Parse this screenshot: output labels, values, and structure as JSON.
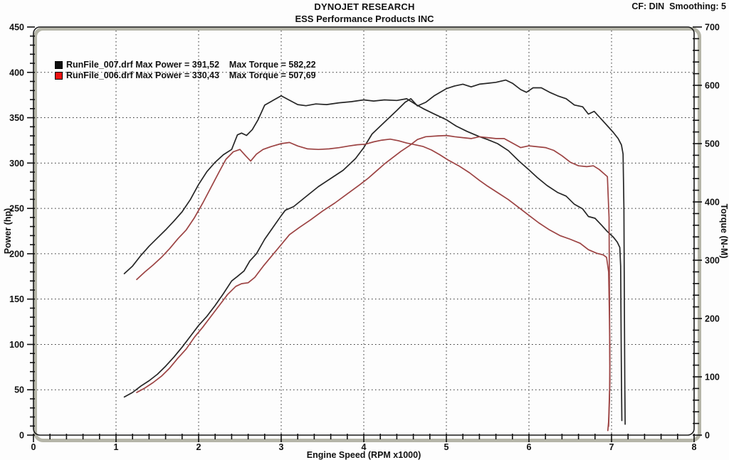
{
  "header": {
    "title": "DYNOJET RESEARCH",
    "subtitle": "ESS Performance Products INC",
    "corner_status": "CF: DIN  Smoothing: 5"
  },
  "legend": {
    "rows": [
      {
        "swatch_color": "#0d0d0d",
        "label": "RunFile_007.drf Max Power = 391,52    Max Torque = 582,22"
      },
      {
        "swatch_color": "#ee1111",
        "label": "RunFile_006.drf Max Power = 330,43    Max Torque = 507,69"
      }
    ]
  },
  "chart_data": {
    "type": "line",
    "title": "DYNOJET RESEARCH",
    "subtitle": "ESS Performance Products INC",
    "xlabel": "Engine Speed (RPM x1000)",
    "ylabel_left": "Power (hp)",
    "ylabel_right": "Torque (N-M)",
    "xlim": [
      0,
      8
    ],
    "ylim_left": [
      0,
      450
    ],
    "ylim_right": [
      0,
      700
    ],
    "x_major_step": 1,
    "x_minor_step": 0.2,
    "y_left_major_step": 50,
    "y_left_minor_step": 10,
    "y_right_major_step": 100,
    "y_right_minor_step": 20,
    "grid": "dotted black; vertical lines at 1..7 RPMx1000, horizontal lines at 50..400 hp",
    "legend_position": "top-left inside plot",
    "axis_colors": {
      "frame_band": "#b5b5a8",
      "frame_line": "#1c1c1c",
      "grid": "#2a2a2a"
    },
    "max_values": {
      "run_007": {
        "max_power_hp": "391,52",
        "max_torque_nm": "582,22"
      },
      "run_006": {
        "max_power_hp": "330,43",
        "max_torque_nm": "507,69"
      }
    },
    "series": [
      {
        "name": "RunFile_007.drf Power",
        "axis": "left",
        "color": "#262626",
        "points": [
          [
            1.1,
            42
          ],
          [
            1.2,
            47
          ],
          [
            1.3,
            54
          ],
          [
            1.4,
            60
          ],
          [
            1.5,
            67
          ],
          [
            1.6,
            76
          ],
          [
            1.7,
            86
          ],
          [
            1.8,
            97
          ],
          [
            1.9,
            109
          ],
          [
            2.0,
            121
          ],
          [
            2.1,
            131
          ],
          [
            2.2,
            143
          ],
          [
            2.3,
            156
          ],
          [
            2.4,
            170
          ],
          [
            2.47,
            175
          ],
          [
            2.55,
            181
          ],
          [
            2.62,
            192
          ],
          [
            2.7,
            200
          ],
          [
            2.8,
            216
          ],
          [
            2.9,
            229
          ],
          [
            3.0,
            242
          ],
          [
            3.05,
            248
          ],
          [
            3.15,
            252
          ],
          [
            3.3,
            263
          ],
          [
            3.45,
            274
          ],
          [
            3.6,
            283
          ],
          [
            3.75,
            292
          ],
          [
            3.9,
            305
          ],
          [
            4.0,
            317
          ],
          [
            4.1,
            332
          ],
          [
            4.25,
            345
          ],
          [
            4.4,
            358
          ],
          [
            4.5,
            367
          ],
          [
            4.57,
            371
          ],
          [
            4.65,
            363
          ],
          [
            4.75,
            367
          ],
          [
            4.85,
            374
          ],
          [
            5.0,
            382
          ],
          [
            5.1,
            385
          ],
          [
            5.2,
            387
          ],
          [
            5.3,
            384
          ],
          [
            5.4,
            387
          ],
          [
            5.5,
            388
          ],
          [
            5.6,
            389
          ],
          [
            5.72,
            391.5
          ],
          [
            5.8,
            388
          ],
          [
            5.9,
            381
          ],
          [
            5.97,
            378
          ],
          [
            6.05,
            383
          ],
          [
            6.15,
            383
          ],
          [
            6.25,
            378
          ],
          [
            6.35,
            374
          ],
          [
            6.45,
            371
          ],
          [
            6.55,
            364
          ],
          [
            6.65,
            362
          ],
          [
            6.72,
            354
          ],
          [
            6.79,
            357
          ],
          [
            6.88,
            348
          ],
          [
            6.95,
            341
          ],
          [
            7.02,
            334
          ],
          [
            7.08,
            327
          ],
          [
            7.12,
            320
          ],
          [
            7.14,
            310
          ],
          [
            7.15,
            250
          ],
          [
            7.155,
            150
          ],
          [
            7.16,
            60
          ],
          [
            7.165,
            12
          ]
        ]
      },
      {
        "name": "RunFile_007.drf Torque",
        "axis": "right",
        "color": "#262626",
        "points": [
          [
            1.1,
            277
          ],
          [
            1.2,
            290
          ],
          [
            1.3,
            308
          ],
          [
            1.4,
            324
          ],
          [
            1.5,
            338
          ],
          [
            1.6,
            352
          ],
          [
            1.7,
            367
          ],
          [
            1.8,
            383
          ],
          [
            1.9,
            404
          ],
          [
            2.0,
            430
          ],
          [
            2.1,
            452
          ],
          [
            2.2,
            468
          ],
          [
            2.3,
            481
          ],
          [
            2.4,
            490
          ],
          [
            2.47,
            515
          ],
          [
            2.52,
            518
          ],
          [
            2.58,
            514
          ],
          [
            2.65,
            524
          ],
          [
            2.72,
            541
          ],
          [
            2.8,
            566
          ],
          [
            2.9,
            574
          ],
          [
            3.0,
            582
          ],
          [
            3.08,
            576
          ],
          [
            3.2,
            567
          ],
          [
            3.3,
            565
          ],
          [
            3.42,
            568
          ],
          [
            3.55,
            567
          ],
          [
            3.7,
            570
          ],
          [
            3.85,
            572
          ],
          [
            4.0,
            575
          ],
          [
            4.12,
            573
          ],
          [
            4.25,
            575
          ],
          [
            4.4,
            574
          ],
          [
            4.52,
            577
          ],
          [
            4.62,
            568
          ],
          [
            4.72,
            560
          ],
          [
            4.85,
            551
          ],
          [
            5.0,
            541
          ],
          [
            5.12,
            530
          ],
          [
            5.25,
            521
          ],
          [
            5.4,
            512
          ],
          [
            5.5,
            507
          ],
          [
            5.62,
            500
          ],
          [
            5.75,
            488
          ],
          [
            5.88,
            470
          ],
          [
            6.0,
            455
          ],
          [
            6.1,
            442
          ],
          [
            6.22,
            428
          ],
          [
            6.35,
            416
          ],
          [
            6.45,
            410
          ],
          [
            6.55,
            396
          ],
          [
            6.65,
            388
          ],
          [
            6.72,
            375
          ],
          [
            6.8,
            372
          ],
          [
            6.88,
            360
          ],
          [
            6.95,
            349
          ],
          [
            7.02,
            340
          ],
          [
            7.07,
            331
          ],
          [
            7.1,
            322
          ],
          [
            7.11,
            290
          ],
          [
            7.115,
            200
          ],
          [
            7.12,
            100
          ],
          [
            7.125,
            25
          ]
        ]
      },
      {
        "name": "RunFile_006.drf Power",
        "axis": "left",
        "color": "#9c4343",
        "points": [
          [
            1.25,
            47
          ],
          [
            1.35,
            52
          ],
          [
            1.45,
            58
          ],
          [
            1.55,
            65
          ],
          [
            1.65,
            74
          ],
          [
            1.75,
            85
          ],
          [
            1.85,
            95
          ],
          [
            1.95,
            108
          ],
          [
            2.05,
            119
          ],
          [
            2.15,
            131
          ],
          [
            2.25,
            143
          ],
          [
            2.35,
            155
          ],
          [
            2.45,
            164
          ],
          [
            2.52,
            167
          ],
          [
            2.6,
            168
          ],
          [
            2.68,
            174
          ],
          [
            2.78,
            186
          ],
          [
            2.88,
            197
          ],
          [
            3.0,
            210
          ],
          [
            3.1,
            221
          ],
          [
            3.22,
            229
          ],
          [
            3.35,
            237
          ],
          [
            3.5,
            247
          ],
          [
            3.65,
            256
          ],
          [
            3.8,
            266
          ],
          [
            3.95,
            276
          ],
          [
            4.05,
            283
          ],
          [
            4.15,
            291
          ],
          [
            4.25,
            299
          ],
          [
            4.35,
            306
          ],
          [
            4.45,
            313
          ],
          [
            4.55,
            319
          ],
          [
            4.65,
            326
          ],
          [
            4.75,
            329
          ],
          [
            4.9,
            330
          ],
          [
            5.0,
            330.4
          ],
          [
            5.1,
            329
          ],
          [
            5.2,
            328
          ],
          [
            5.3,
            327
          ],
          [
            5.4,
            329
          ],
          [
            5.5,
            328
          ],
          [
            5.6,
            327
          ],
          [
            5.7,
            327
          ],
          [
            5.8,
            322
          ],
          [
            5.9,
            317
          ],
          [
            6.0,
            319
          ],
          [
            6.1,
            318
          ],
          [
            6.2,
            317
          ],
          [
            6.3,
            314
          ],
          [
            6.4,
            308
          ],
          [
            6.5,
            301
          ],
          [
            6.6,
            297
          ],
          [
            6.7,
            296
          ],
          [
            6.78,
            297
          ],
          [
            6.85,
            293
          ],
          [
            6.9,
            289
          ],
          [
            6.95,
            285
          ],
          [
            6.97,
            240
          ],
          [
            6.975,
            150
          ],
          [
            6.98,
            60
          ],
          [
            6.965,
            15
          ],
          [
            6.955,
            5
          ]
        ]
      },
      {
        "name": "RunFile_006.drf Torque",
        "axis": "right",
        "color": "#9c4343",
        "points": [
          [
            1.25,
            267
          ],
          [
            1.35,
            280
          ],
          [
            1.45,
            292
          ],
          [
            1.55,
            305
          ],
          [
            1.65,
            320
          ],
          [
            1.75,
            337
          ],
          [
            1.85,
            352
          ],
          [
            1.95,
            373
          ],
          [
            2.05,
            398
          ],
          [
            2.15,
            425
          ],
          [
            2.25,
            452
          ],
          [
            2.33,
            473
          ],
          [
            2.42,
            486
          ],
          [
            2.5,
            490
          ],
          [
            2.57,
            479
          ],
          [
            2.63,
            470
          ],
          [
            2.7,
            482
          ],
          [
            2.78,
            490
          ],
          [
            2.88,
            495
          ],
          [
            3.0,
            500
          ],
          [
            3.1,
            502
          ],
          [
            3.2,
            496
          ],
          [
            3.32,
            491
          ],
          [
            3.45,
            490
          ],
          [
            3.58,
            491
          ],
          [
            3.7,
            493
          ],
          [
            3.82,
            496
          ],
          [
            3.92,
            498
          ],
          [
            4.02,
            499
          ],
          [
            4.12,
            503
          ],
          [
            4.22,
            506
          ],
          [
            4.32,
            507.7
          ],
          [
            4.42,
            505
          ],
          [
            4.52,
            501
          ],
          [
            4.62,
            498
          ],
          [
            4.72,
            495
          ],
          [
            4.82,
            489
          ],
          [
            4.92,
            481
          ],
          [
            5.02,
            472
          ],
          [
            5.15,
            462
          ],
          [
            5.28,
            450
          ],
          [
            5.4,
            437
          ],
          [
            5.5,
            427
          ],
          [
            5.62,
            416
          ],
          [
            5.75,
            404
          ],
          [
            5.88,
            390
          ],
          [
            6.0,
            377
          ],
          [
            6.12,
            364
          ],
          [
            6.25,
            352
          ],
          [
            6.38,
            342
          ],
          [
            6.5,
            336
          ],
          [
            6.62,
            329
          ],
          [
            6.72,
            318
          ],
          [
            6.82,
            312
          ],
          [
            6.9,
            309
          ],
          [
            6.94,
            305
          ],
          [
            6.965,
            280
          ],
          [
            6.975,
            200
          ],
          [
            6.98,
            120
          ],
          [
            6.975,
            60
          ],
          [
            6.965,
            15
          ]
        ]
      }
    ]
  }
}
